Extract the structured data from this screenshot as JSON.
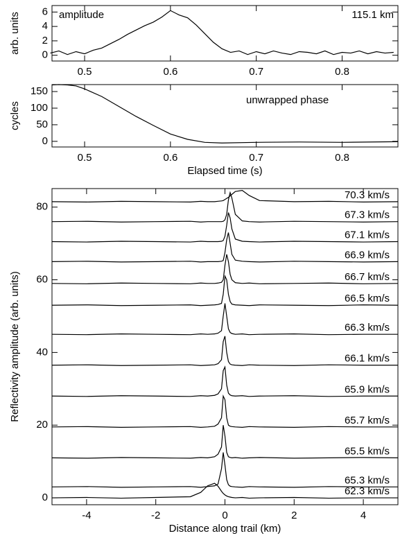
{
  "chart_data": [
    {
      "type": "line",
      "ylabel": "arb. units",
      "annotations": [
        "amplitude",
        "115.1 km"
      ],
      "x": [
        0.46,
        0.47,
        0.48,
        0.49,
        0.5,
        0.51,
        0.52,
        0.53,
        0.54,
        0.55,
        0.56,
        0.57,
        0.58,
        0.59,
        0.6,
        0.61,
        0.62,
        0.63,
        0.64,
        0.65,
        0.66,
        0.67,
        0.68,
        0.69,
        0.7,
        0.71,
        0.72,
        0.73,
        0.74,
        0.75,
        0.76,
        0.77,
        0.78,
        0.79,
        0.8,
        0.81,
        0.82,
        0.83,
        0.84,
        0.85,
        0.86
      ],
      "values": [
        0.3,
        0.6,
        0.1,
        0.5,
        0.2,
        0.7,
        1.0,
        1.6,
        2.2,
        2.9,
        3.5,
        4.1,
        4.6,
        5.3,
        6.2,
        5.6,
        5.2,
        4.2,
        3.0,
        1.8,
        0.9,
        0.4,
        0.6,
        0.1,
        0.5,
        0.2,
        0.6,
        0.3,
        0.1,
        0.5,
        0.4,
        0.2,
        0.6,
        0.1,
        0.4,
        0.3,
        0.6,
        0.2,
        0.5,
        0.3,
        0.4
      ],
      "color": "#000000",
      "xlim": [
        0.462,
        0.865
      ],
      "xticks": [
        0.5,
        0.6,
        0.7,
        0.8
      ],
      "ylim": [
        -0.8,
        6.9
      ],
      "yticks": [
        0,
        2,
        4,
        6
      ]
    },
    {
      "type": "line",
      "xlabel": "Elapsed time (s)",
      "ylabel": "cycles",
      "annotations": [
        "unwrapped phase"
      ],
      "x": [
        0.462,
        0.47,
        0.48,
        0.49,
        0.5,
        0.52,
        0.54,
        0.56,
        0.58,
        0.6,
        0.62,
        0.64,
        0.66,
        0.7,
        0.75,
        0.8,
        0.865
      ],
      "values": [
        170,
        171,
        170,
        167,
        158,
        135,
        105,
        75,
        48,
        22,
        6,
        -3,
        -5,
        -3,
        -2,
        -3,
        -1
      ],
      "color": "#000000",
      "xlim": [
        0.462,
        0.865
      ],
      "xticks": [
        0.5,
        0.6,
        0.7,
        0.8
      ],
      "ylim": [
        -17,
        171
      ],
      "yticks": [
        0,
        50,
        100,
        150
      ]
    },
    {
      "type": "line",
      "xlabel": "Distance along trail (km)",
      "ylabel": "Reflectivity amplitude (arb. units)",
      "x": [
        -5,
        -4,
        -3,
        -2,
        -1,
        -0.7,
        -0.5,
        -0.3,
        -0.2,
        -0.1,
        -0.05,
        0,
        0.05,
        0.1,
        0.15,
        0.2,
        0.3,
        0.5,
        0.7,
        1,
        2,
        3,
        4,
        5
      ],
      "series": [
        {
          "name": "70.3 km/s",
          "color": "#000000",
          "values": [
            81.5,
            81.4,
            81.6,
            81.5,
            81.4,
            81.6,
            81.5,
            81.5,
            81.6,
            81.7,
            81.8,
            82.1,
            82.4,
            82.7,
            83.1,
            83.5,
            84.3,
            84.6,
            83.2,
            81.8,
            81.5,
            81.6,
            81.4,
            81.5
          ]
        },
        {
          "name": "67.3 km/s",
          "color": "#000000",
          "values": [
            76,
            76.1,
            75.9,
            76,
            76.1,
            75.9,
            76,
            76,
            76,
            76,
            76.1,
            76.5,
            78,
            82,
            84,
            82.5,
            78,
            76.2,
            76,
            75.9,
            76.1,
            76,
            75.9,
            76
          ]
        },
        {
          "name": "67.1 km/s",
          "color": "#000000",
          "values": [
            70.5,
            70.4,
            70.6,
            70.5,
            70.4,
            70.6,
            70.5,
            70.5,
            70.5,
            70.6,
            70.8,
            72,
            75,
            78.5,
            77,
            74,
            71.2,
            70.6,
            70.5,
            70.4,
            70.6,
            70.5,
            70.4,
            70.5
          ]
        },
        {
          "name": "66.9 km/s",
          "color": "#000000",
          "values": [
            65,
            65.1,
            64.9,
            65,
            65.1,
            64.9,
            65,
            65,
            65,
            65.1,
            65.3,
            67.5,
            71,
            73,
            70,
            67,
            65.4,
            65.1,
            65,
            64.9,
            65.1,
            65,
            64.9,
            65
          ]
        },
        {
          "name": "66.7 km/s",
          "color": "#000000",
          "values": [
            59,
            58.9,
            59.1,
            59,
            58.9,
            59.1,
            59,
            59,
            59.1,
            59.3,
            60,
            64,
            67,
            65,
            61.5,
            60,
            59.2,
            59,
            59.1,
            58.9,
            59,
            59.1,
            58.9,
            59
          ]
        },
        {
          "name": "66.5 km/s",
          "color": "#000000",
          "values": [
            53,
            53.1,
            52.9,
            53,
            53.1,
            52.9,
            53,
            53.1,
            53.2,
            53.5,
            56,
            61,
            60,
            56,
            54,
            53.3,
            53.1,
            53,
            52.9,
            53.1,
            53,
            52.9,
            53.1,
            53
          ]
        },
        {
          "name": "66.3 km/s",
          "color": "#000000",
          "values": [
            45,
            44.9,
            45.1,
            45,
            44.9,
            45.1,
            45,
            45.1,
            45.3,
            46,
            50,
            53.5,
            50,
            46.5,
            45.5,
            45.2,
            45,
            45.1,
            44.9,
            45,
            45.1,
            44.9,
            45,
            45
          ]
        },
        {
          "name": "66.1 km/s",
          "color": "#000000",
          "values": [
            36.5,
            36.6,
            36.4,
            36.5,
            36.6,
            36.4,
            36.5,
            36.6,
            36.9,
            38,
            43,
            44.5,
            40,
            37.5,
            36.8,
            36.6,
            36.5,
            36.4,
            36.6,
            36.5,
            36.4,
            36.6,
            36.5,
            36.5
          ]
        },
        {
          "name": "65.9 km/s",
          "color": "#000000",
          "values": [
            28,
            27.9,
            28.1,
            28,
            27.9,
            28.1,
            28,
            28.2,
            28.6,
            30,
            35,
            36,
            31,
            28.8,
            28.3,
            28.1,
            28,
            28.1,
            27.9,
            28,
            28.1,
            27.9,
            28,
            28
          ]
        },
        {
          "name": "65.7 km/s",
          "color": "#000000",
          "values": [
            19.5,
            19.6,
            19.4,
            19.5,
            19.6,
            19.4,
            19.5,
            19.7,
            20.3,
            22,
            28,
            27,
            22,
            20,
            19.7,
            19.6,
            19.5,
            19.4,
            19.6,
            19.5,
            19.4,
            19.6,
            19.5,
            19.5
          ]
        },
        {
          "name": "65.5 km/s",
          "color": "#000000",
          "values": [
            11,
            10.9,
            11.1,
            11,
            10.9,
            11.1,
            11,
            11.3,
            12,
            14,
            20,
            17,
            12.5,
            11.3,
            11.1,
            11,
            11.1,
            10.9,
            11,
            11.1,
            10.9,
            11,
            11.1,
            11
          ]
        },
        {
          "name": "65.3 km/s",
          "color": "#000000",
          "values": [
            3,
            3.1,
            2.9,
            3,
            3.1,
            2.9,
            3.1,
            3.3,
            3.8,
            8,
            12.5,
            9,
            5,
            3.6,
            3.2,
            3.1,
            3,
            2.9,
            3.1,
            3,
            2.9,
            3.1,
            3,
            3
          ]
        },
        {
          "name": "62.3 km/s",
          "color": "#000000",
          "values": [
            0,
            0.1,
            -0.1,
            0.1,
            0.3,
            1.5,
            3.3,
            4,
            3.2,
            1.8,
            1.2,
            0.8,
            0.5,
            0.3,
            0.2,
            0.1,
            0,
            0.1,
            -0.1,
            0,
            0.1,
            -0.1,
            0,
            0
          ]
        }
      ],
      "xlim": [
        -5,
        5
      ],
      "xticks": [
        -4,
        -2,
        0,
        2,
        4
      ],
      "ylim": [
        -1.9,
        85.1
      ],
      "yticks": [
        0,
        20,
        40,
        60,
        80
      ]
    }
  ]
}
